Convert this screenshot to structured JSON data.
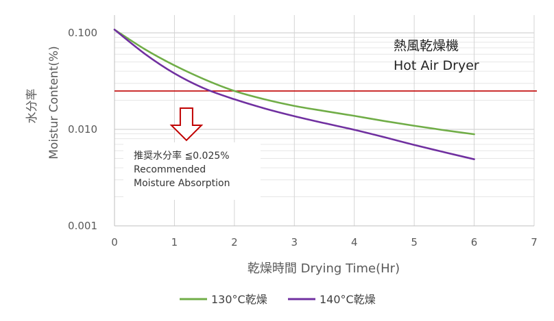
{
  "chart_data": {
    "type": "line",
    "y_scale": "log",
    "xlabel": "乾燥時間 Drying Time(Hr)",
    "ylabel_jp": "水分率",
    "ylabel_en": "Moistur Content(%)",
    "xlim": [
      0,
      7
    ],
    "ylim": [
      0.001,
      0.1
    ],
    "x_ticks": [
      "0",
      "1",
      "2",
      "3",
      "4",
      "5",
      "6",
      "7"
    ],
    "y_ticks": [
      {
        "value": 0.1,
        "label": "0.100"
      },
      {
        "value": 0.01,
        "label": "0.010"
      },
      {
        "value": 0.001,
        "label": "0.001"
      }
    ],
    "grid": true,
    "legend_position": "bottom-center",
    "series": [
      {
        "name": "130°C乾燥",
        "color": "#70ad47",
        "x": [
          0,
          0.5,
          1,
          1.5,
          2,
          2.5,
          3,
          3.5,
          4,
          4.5,
          5,
          5.5,
          6
        ],
        "y": [
          0.108,
          0.068,
          0.046,
          0.033,
          0.025,
          0.0205,
          0.0175,
          0.0155,
          0.0138,
          0.0122,
          0.0109,
          0.0098,
          0.0089
        ]
      },
      {
        "name": "140°C乾燥",
        "color": "#7030a0",
        "x": [
          0,
          0.5,
          1,
          1.5,
          2,
          2.5,
          3,
          3.5,
          4,
          4.5,
          5,
          5.5,
          6
        ],
        "y": [
          0.108,
          0.061,
          0.038,
          0.0265,
          0.0205,
          0.0165,
          0.0137,
          0.0116,
          0.0099,
          0.0083,
          0.0069,
          0.0058,
          0.0049
        ]
      }
    ],
    "threshold": {
      "value": 0.025,
      "color": "#c00000"
    },
    "annotations": {
      "dryer_jp": "熱風乾燥機",
      "dryer_en": "Hot Air Dryer",
      "box_line1": "推奨水分率 ≦0.025%",
      "box_line2": "Recommended",
      "box_line3": "Moisture Absorption"
    },
    "arrow_color": "#c00000",
    "arrow_x": 1.2
  }
}
